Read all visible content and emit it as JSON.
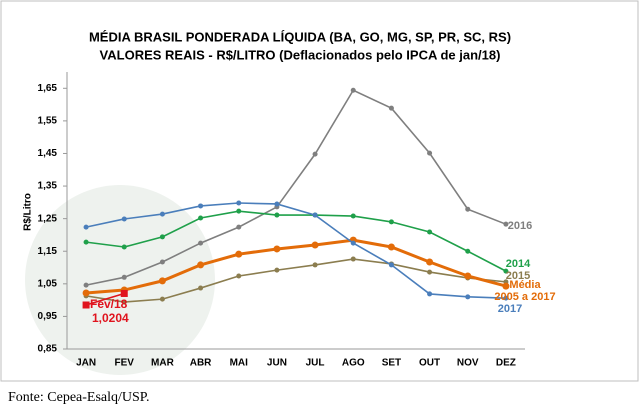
{
  "chart_data": {
    "type": "line",
    "title": "MÉDIA BRASIL PONDERADA LÍQUIDA (BA, GO, MG, SP, PR, SC, RS)",
    "subtitle": "VALORES REAIS - R$/LITRO (Deflacionados pelo IPCA de jan/18)",
    "y_label": "R$/Litro",
    "categories": [
      "JAN",
      "FEV",
      "MAR",
      "ABR",
      "MAI",
      "JUN",
      "JUL",
      "AGO",
      "SET",
      "OUT",
      "NOV",
      "DEZ"
    ],
    "ylim": [
      0.85,
      1.7
    ],
    "yticks": [
      {
        "value": 0.85,
        "label": "0,85"
      },
      {
        "value": 0.95,
        "label": "0,95"
      },
      {
        "value": 1.05,
        "label": "1,05"
      },
      {
        "value": 1.15,
        "label": "1,15"
      },
      {
        "value": 1.25,
        "label": "1,25"
      },
      {
        "value": 1.35,
        "label": "1,35"
      },
      {
        "value": 1.45,
        "label": "1,45"
      },
      {
        "value": 1.55,
        "label": "1,55"
      },
      {
        "value": 1.65,
        "label": "1,65"
      }
    ],
    "grid": false,
    "series": [
      {
        "name": "2016",
        "color": "#7f7f7f",
        "values": [
          1.046,
          1.07,
          1.117,
          1.175,
          1.224,
          1.286,
          1.448,
          1.644,
          1.589,
          1.451,
          1.279,
          1.233
        ]
      },
      {
        "name": "2014",
        "color": "#1fa04a",
        "values": [
          1.178,
          1.163,
          1.194,
          1.252,
          1.273,
          1.261,
          1.261,
          1.258,
          1.24,
          1.209,
          1.15,
          1.089
        ]
      },
      {
        "name": "2015",
        "color": "#8b7d4f",
        "values": [
          1.013,
          0.994,
          1.003,
          1.037,
          1.074,
          1.092,
          1.108,
          1.126,
          1.111,
          1.086,
          1.068,
          1.056
        ]
      },
      {
        "name": "Média\n2005 a 2017",
        "color": "#e36c09",
        "values": [
          1.022,
          1.031,
          1.059,
          1.108,
          1.141,
          1.157,
          1.169,
          1.184,
          1.163,
          1.117,
          1.074,
          1.043
        ]
      },
      {
        "name": "2017",
        "color": "#4a7ebb",
        "values": [
          1.224,
          1.249,
          1.264,
          1.289,
          1.298,
          1.295,
          1.261,
          1.175,
          1.108,
          1.019,
          1.01,
          1.006
        ]
      },
      {
        "color": "#e0141e",
        "values": [
          0.985,
          1.0204,
          null,
          null,
          null,
          null,
          null,
          null,
          null,
          null,
          null,
          null
        ]
      }
    ],
    "annotations": [
      "Fev/18",
      "1,0204"
    ],
    "source": "Fonte: Cepea-Esalq/USP."
  }
}
